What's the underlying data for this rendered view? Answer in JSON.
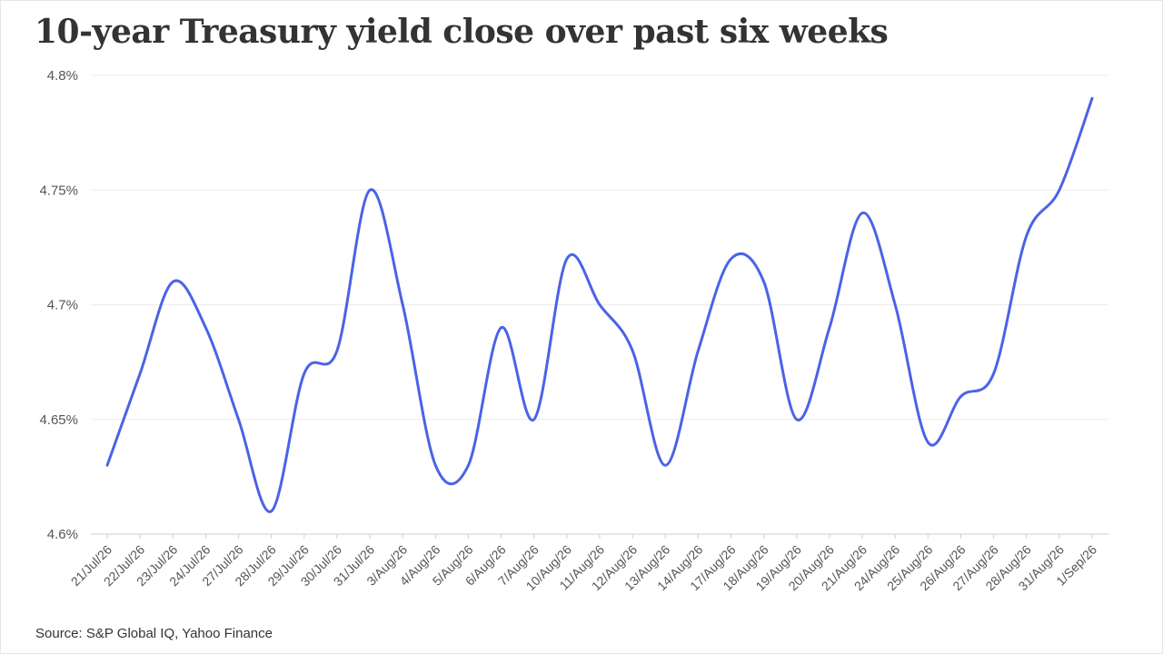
{
  "chart_data": {
    "type": "line",
    "title": "10-year Treasury yield close over past six weeks",
    "source": "Source: S&P Global IQ, Yahoo Finance",
    "xlabel": "",
    "ylabel": "",
    "ylim": [
      4.6,
      4.8
    ],
    "yticks": [
      "4.6%",
      "4.65%",
      "4.7%",
      "4.75%",
      "4.8%"
    ],
    "yticks_values": [
      4.6,
      4.65,
      4.7,
      4.75,
      4.8
    ],
    "grid": "horizontal",
    "categories": [
      "21/Jul/26",
      "22/Jul/26",
      "23/Jul/26",
      "24/Jul/26",
      "27/Jul/26",
      "28/Jul/26",
      "29/Jul/26",
      "30/Jul/26",
      "31/Jul/26",
      "3/Aug/26",
      "4/Aug/26",
      "5/Aug/26",
      "6/Aug/26",
      "7/Aug/26",
      "10/Aug/26",
      "11/Aug/26",
      "12/Aug/26",
      "13/Aug/26",
      "14/Aug/26",
      "17/Aug/26",
      "18/Aug/26",
      "19/Aug/26",
      "20/Aug/26",
      "21/Aug/26",
      "24/Aug/26",
      "25/Aug/26",
      "26/Aug/26",
      "27/Aug/26",
      "28/Aug/26",
      "31/Aug/26",
      "1/Sep/26"
    ],
    "values": [
      4.63,
      4.67,
      4.71,
      4.69,
      4.65,
      4.61,
      4.67,
      4.68,
      4.75,
      4.7,
      4.63,
      4.63,
      4.69,
      4.65,
      4.72,
      4.7,
      4.68,
      4.63,
      4.68,
      4.72,
      4.71,
      4.65,
      4.69,
      4.74,
      4.7,
      4.64,
      4.66,
      4.67,
      4.73,
      4.75,
      4.79
    ],
    "line_color": "#4a63e7"
  }
}
